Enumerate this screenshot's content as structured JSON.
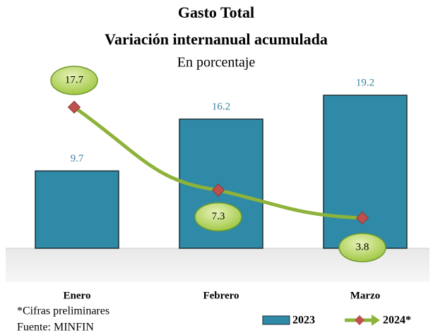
{
  "chart_data": {
    "type": "bar-line",
    "title": "Gasto Total",
    "subtitle_bold": "Variación internanual acumulada",
    "subtitle": "En porcentaje",
    "categories": [
      "Enero",
      "Febrero",
      "Marzo"
    ],
    "series": [
      {
        "name": "2023",
        "type": "bar",
        "color": "#2e8aa6",
        "values": [
          9.7,
          16.2,
          19.2
        ]
      },
      {
        "name": "2024*",
        "type": "line",
        "color": "#8db33a",
        "marker_color": "#c0504d",
        "values": [
          17.7,
          7.3,
          3.8
        ]
      }
    ],
    "ylim": [
      0,
      20
    ],
    "notes": [
      "*Cifras preliminares",
      "Fuente: MINFIN"
    ]
  }
}
